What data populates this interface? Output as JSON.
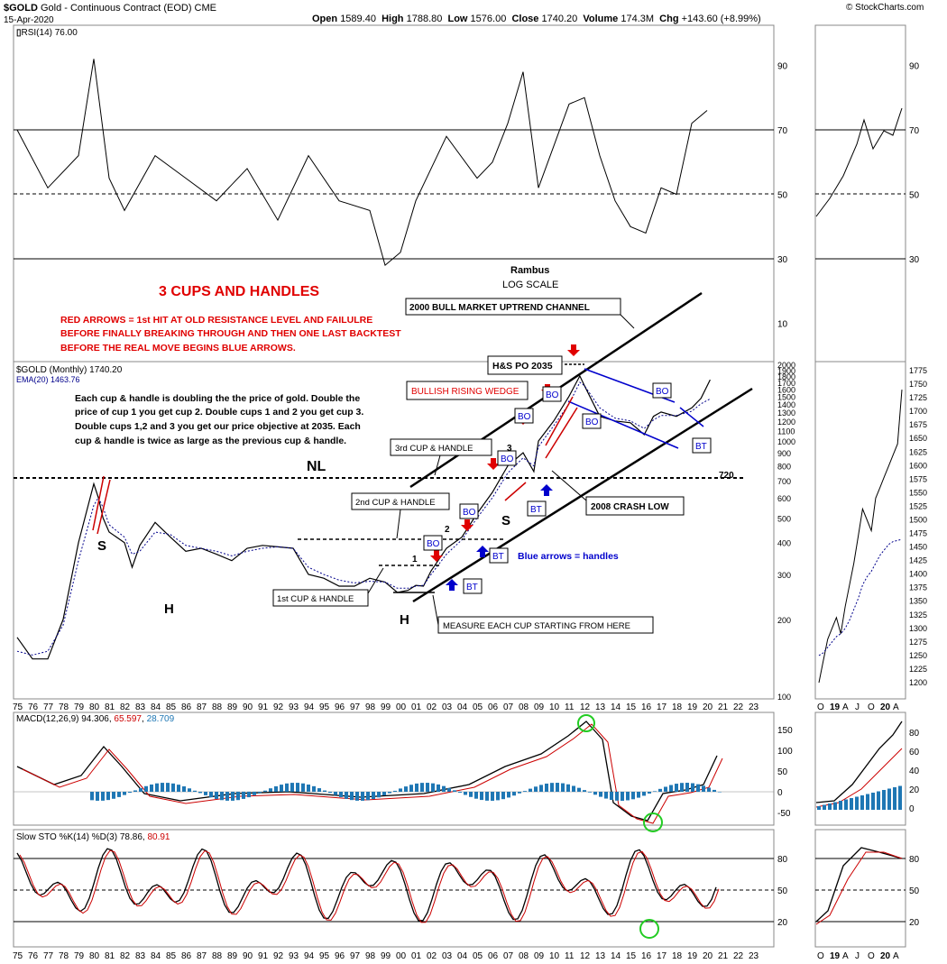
{
  "header": {
    "symbol": "$GOLD",
    "name": "Gold - Continuous Contract (EOD)",
    "exchange": "CME",
    "date": "15-Apr-2020",
    "open_label": "Open",
    "open": "1589.40",
    "high_label": "High",
    "high": "1788.80",
    "low_label": "Low",
    "low": "1576.00",
    "close_label": "Close",
    "close": "1740.20",
    "volume_label": "Volume",
    "volume": "174.3M",
    "chg_label": "Chg",
    "chg": "+143.60 (+8.99%)",
    "credit": "© StockCharts.com"
  },
  "rsi": {
    "label": "RSI(14) 76.00",
    "levels": [
      90,
      70,
      50,
      30,
      10
    ],
    "overbought": 70,
    "oversold": 30,
    "x_years": [
      75,
      77,
      79,
      80,
      81,
      82,
      84,
      86,
      88,
      90,
      92,
      94,
      96,
      98,
      99,
      100,
      101,
      103,
      105,
      106,
      107,
      108,
      109,
      110,
      111,
      112,
      113,
      114,
      115,
      116,
      117,
      118,
      119,
      120
    ],
    "values": [
      70,
      52,
      62,
      92,
      55,
      45,
      62,
      55,
      48,
      58,
      42,
      62,
      48,
      45,
      28,
      32,
      48,
      68,
      55,
      60,
      72,
      88,
      52,
      65,
      78,
      80,
      62,
      48,
      40,
      38,
      52,
      50,
      72,
      76
    ]
  },
  "price": {
    "label": "$GOLD (Monthly) 1740.20",
    "ema_label": "EMA(20) 1463.76",
    "y_ticks": [
      2000,
      1900,
      1800,
      1700,
      1600,
      1500,
      1400,
      1300,
      1200,
      1100,
      1000,
      900,
      800,
      700,
      600,
      500,
      400,
      300,
      200,
      100
    ],
    "x_axis": [
      "75",
      "76",
      "77",
      "78",
      "79",
      "80",
      "81",
      "82",
      "83",
      "84",
      "85",
      "86",
      "87",
      "88",
      "89",
      "90",
      "91",
      "92",
      "93",
      "94",
      "95",
      "96",
      "97",
      "98",
      "99",
      "00",
      "01",
      "02",
      "03",
      "04",
      "05",
      "06",
      "07",
      "08",
      "09",
      "10",
      "11",
      "12",
      "13",
      "14",
      "15",
      "16",
      "17",
      "18",
      "19",
      "20",
      "21",
      "22",
      "23"
    ],
    "x_years": [
      75,
      76,
      77,
      78,
      79,
      80,
      80.3,
      80.6,
      81,
      82,
      82.5,
      83,
      84,
      85,
      86,
      87,
      88,
      89,
      90,
      91,
      92,
      93,
      94,
      95,
      96,
      97,
      98,
      99,
      99.8,
      100.5,
      101,
      101.5,
      102,
      103,
      104,
      105,
      106,
      107,
      108,
      108.7,
      109,
      110,
      111,
      111.7,
      112,
      113,
      114,
      115,
      115.9,
      116.5,
      117,
      118,
      119,
      119.6,
      120.2
    ],
    "closes": [
      170,
      140,
      140,
      200,
      400,
      680,
      600,
      500,
      440,
      400,
      320,
      390,
      480,
      420,
      370,
      380,
      360,
      340,
      380,
      390,
      385,
      380,
      300,
      290,
      270,
      270,
      290,
      280,
      255,
      260,
      272,
      270,
      310,
      380,
      420,
      520,
      630,
      800,
      900,
      760,
      1000,
      1200,
      1500,
      1800,
      1650,
      1250,
      1200,
      1180,
      1060,
      1250,
      1300,
      1250,
      1350,
      1470,
      1740
    ],
    "ema": [
      150,
      145,
      150,
      190,
      340,
      560,
      600,
      550,
      470,
      420,
      360,
      370,
      440,
      430,
      390,
      380,
      370,
      355,
      370,
      380,
      385,
      380,
      320,
      300,
      285,
      278,
      282,
      280,
      265,
      265,
      270,
      272,
      300,
      360,
      410,
      500,
      600,
      750,
      860,
      800,
      950,
      1150,
      1400,
      1700,
      1650,
      1350,
      1230,
      1200,
      1120,
      1210,
      1260,
      1260,
      1310,
      1400,
      1464
    ],
    "neckline": 720
  },
  "annotations": {
    "rambus": "Rambus",
    "log_scale": "LOG SCALE",
    "title": "3 CUPS AND HANDLES",
    "red_text": [
      "RED ARROWS = 1st HIT AT OLD RESISTANCE LEVEL AND FAILULRE",
      "BEFORE FINALLY BREAKING THROUGH AND THEN ONE LAST BACKTEST",
      "BEFORE THE REAL MOVE BEGINS BLUE ARROWS."
    ],
    "desc": [
      "Each cup & handle is doubling the the price of gold. Double the",
      "price of cup 1 you get cup 2. Double cups 1 and 2 you get cup 3.",
      "Double cups 1,2 and 3 you get our price objective at 2035. Each",
      "cup & handle is twice as large as the previous cup & handle."
    ],
    "bull_channel": "2000 BULL MARKET UPTREND CHANNEL",
    "hs_po": "H&S PO 2035",
    "wedge": "BULLISH RISING WEDGE",
    "cup3": "3rd CUP & HANDLE",
    "cup2": "2nd CUP & HANDLE",
    "cup1": "1st CUP & HANDLE",
    "measure": "MEASURE EACH CUP STARTING FROM HERE",
    "crash": "2008 CRASH LOW",
    "blue_arrows": "Blue arrows = handles",
    "nl": "NL",
    "n720": "720",
    "s": "S",
    "h": "H",
    "bo": "BO",
    "bt": "BT",
    "n1": "1",
    "n2": "2",
    "n3": "3"
  },
  "macd": {
    "label": "MACD(12,26,9)",
    "v1": "94.306",
    "v2": "65.597",
    "v3": "28.709",
    "color_signal": "#cc0000",
    "color_hist": "#1f77b4",
    "y_ticks": [
      150,
      100,
      50,
      0,
      -50
    ]
  },
  "sto": {
    "label": "Slow STO %K(14) %D(3)",
    "k": "78.86",
    "d": "80.91",
    "y_ticks": [
      80,
      50,
      20
    ]
  },
  "right": {
    "x_axis": [
      "O",
      "19",
      "A",
      "J",
      "O",
      "20",
      "A"
    ],
    "y_ticks": [
      1775,
      1750,
      1725,
      1700,
      1675,
      1650,
      1625,
      1600,
      1575,
      1550,
      1525,
      1500,
      1475,
      1450,
      1425,
      1400,
      1375,
      1350,
      1325,
      1300,
      1275,
      1250,
      1225,
      1200
    ],
    "rsi_ticks": [
      90,
      70,
      50,
      30
    ],
    "macd_ticks": [
      80,
      60,
      40,
      20,
      0
    ],
    "sto_ticks": [
      80,
      50,
      20
    ],
    "closes": [
      1200,
      1240,
      1280,
      1300,
      1320,
      1290,
      1340,
      1380,
      1420,
      1470,
      1520,
      1500,
      1480,
      1540,
      1560,
      1580,
      1600,
      1620,
      1640,
      1740
    ],
    "ema": [
      1250,
      1255,
      1265,
      1275,
      1285,
      1290,
      1300,
      1315,
      1335,
      1355,
      1380,
      1395,
      1405,
      1420,
      1435,
      1445,
      1455,
      1460,
      1462,
      1464
    ]
  }
}
